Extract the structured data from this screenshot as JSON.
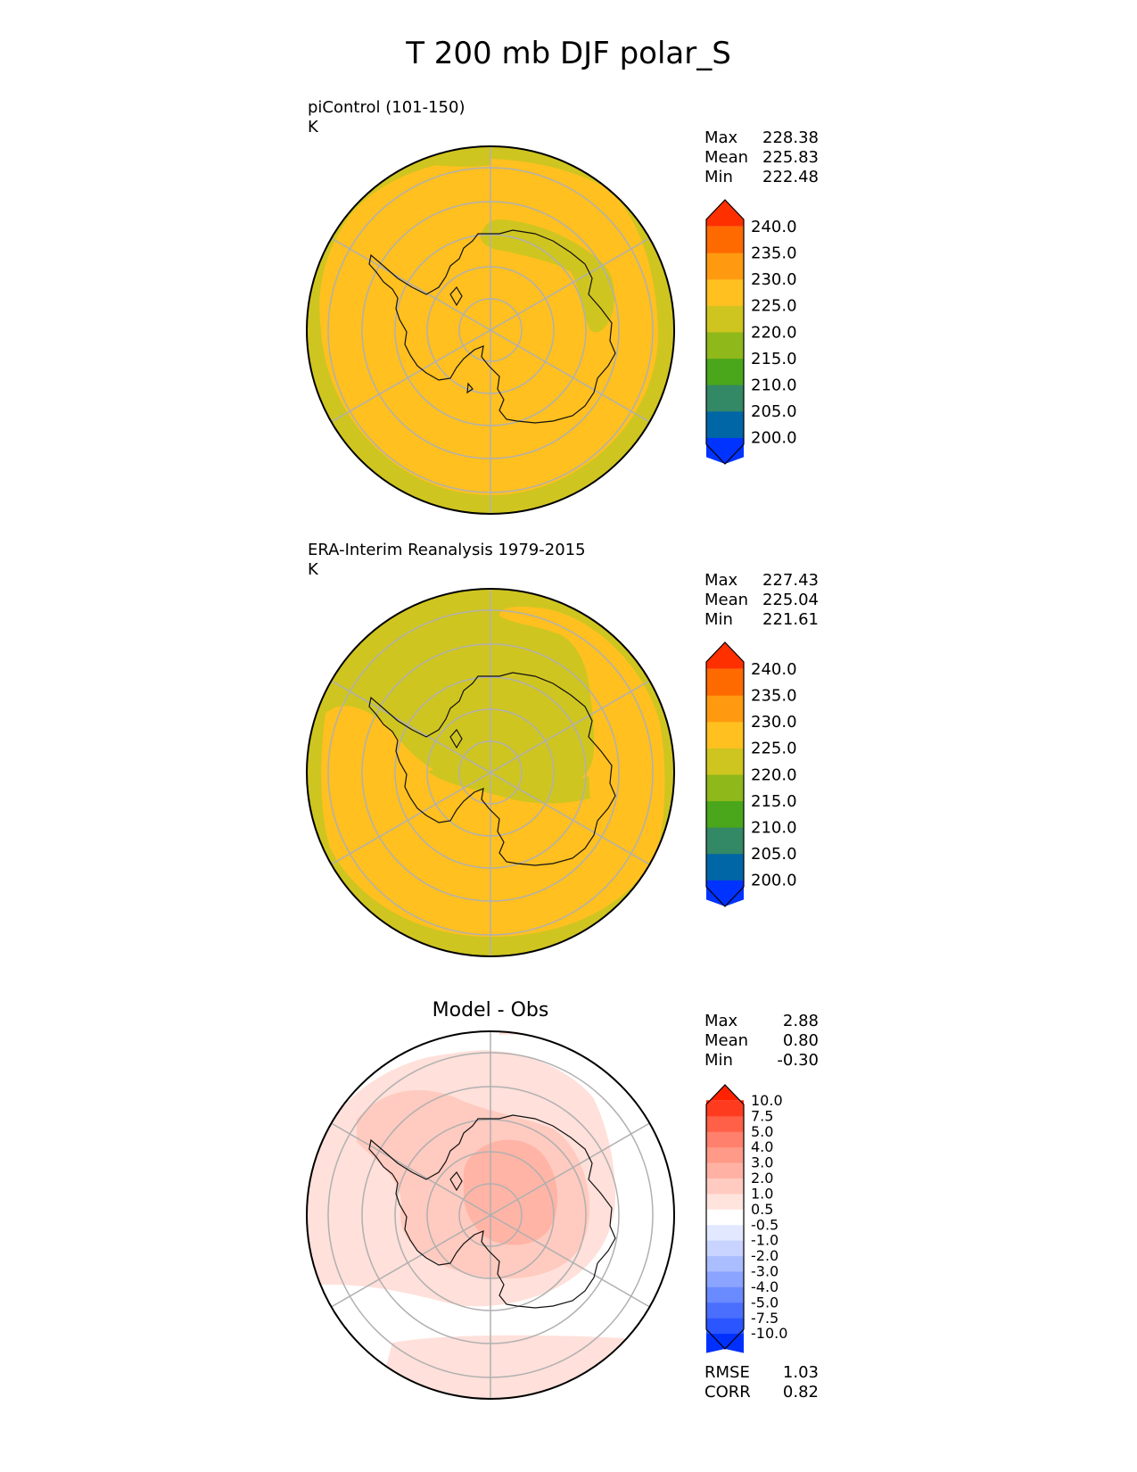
{
  "title": "T 200 mb DJF polar_S",
  "chart_data": [
    {
      "type": "heatmap",
      "projection": "south polar stereographic",
      "title": "piControl (101-150)",
      "units": "K",
      "stats": {
        "max": "228.38",
        "mean": "225.83",
        "min": "222.48"
      },
      "colorbar": {
        "levels": [
          "200.0",
          "205.0",
          "210.0",
          "215.0",
          "220.0",
          "225.0",
          "230.0",
          "235.0",
          "240.0"
        ],
        "colors": [
          "#0033ff",
          "#0066a6",
          "#338866",
          "#4aa61a",
          "#8fb81a",
          "#cfc520",
          "#ffc020",
          "#ff9a10",
          "#ff6a00",
          "#ff3000"
        ],
        "extend": "both"
      }
    },
    {
      "type": "heatmap",
      "projection": "south polar stereographic",
      "title": "ERA-Interim Reanalysis 1979-2015",
      "units": "K",
      "stats": {
        "max": "227.43",
        "mean": "225.04",
        "min": "221.61"
      },
      "colorbar": {
        "levels": [
          "200.0",
          "205.0",
          "210.0",
          "215.0",
          "220.0",
          "225.0",
          "230.0",
          "235.0",
          "240.0"
        ],
        "colors": [
          "#0033ff",
          "#0066a6",
          "#338866",
          "#4aa61a",
          "#8fb81a",
          "#cfc520",
          "#ffc020",
          "#ff9a10",
          "#ff6a00",
          "#ff3000"
        ],
        "extend": "both"
      }
    },
    {
      "type": "heatmap",
      "projection": "south polar stereographic",
      "title": "Model - Obs",
      "stats": {
        "max": "2.88",
        "mean": "0.80",
        "min": "-0.30"
      },
      "metrics": {
        "rmse_label": "RMSE",
        "rmse": "1.03",
        "corr_label": "CORR",
        "corr": "0.82"
      },
      "colorbar": {
        "levels": [
          "-10.0",
          "-7.5",
          "-5.0",
          "-4.0",
          "-3.0",
          "-2.0",
          "-1.0",
          "-0.5",
          "0.5",
          "1.0",
          "2.0",
          "3.0",
          "4.0",
          "5.0",
          "7.5",
          "10.0"
        ],
        "colors": [
          "#0030ff",
          "#2a55ff",
          "#4a6fff",
          "#6a8aff",
          "#8aa4ff",
          "#aabdff",
          "#c8d4ff",
          "#e2e8ff",
          "#ffffff",
          "#ffe4de",
          "#ffcbc0",
          "#ffb2a3",
          "#ff9a88",
          "#ff806c",
          "#ff6047",
          "#ff3b1f",
          "#ff2200"
        ],
        "extend": "both"
      }
    }
  ],
  "labels": {
    "max": "Max",
    "mean": "Mean",
    "min": "Min"
  },
  "colors": {
    "yellow": "#ffc020",
    "olive": "#cfc520",
    "grid": "#b0b0b0",
    "diff_light": "#ffe0da",
    "diff_mid": "#ffcabf",
    "diff_strong": "#ffb4a5"
  }
}
